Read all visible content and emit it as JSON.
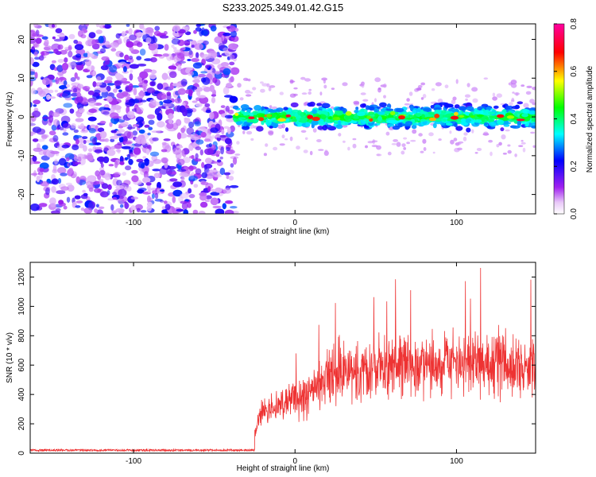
{
  "title": "S233.2025.349.01.42.G15",
  "chart_data": [
    {
      "type": "heatmap",
      "name": "spectrogram",
      "xlabel": "Height of straight line (km)",
      "ylabel": "Frequency (Hz)",
      "xlim": [
        -164,
        149
      ],
      "ylim": [
        -25,
        24
      ],
      "xticks": [
        -100,
        0,
        100
      ],
      "yticks": [
        -20,
        -10,
        0,
        10,
        20
      ],
      "noise_region_x": [
        -164,
        -37
      ],
      "signal_region_x": [
        -37,
        149
      ],
      "signal_center_hz": 0,
      "signal_halfwidth_hz": 3,
      "colorbar": {
        "label": "Normalized spectral amplitude",
        "range": [
          0.0,
          0.8
        ],
        "ticks": [
          "0.0",
          "0.2",
          "0.4",
          "0.6",
          "0.8"
        ],
        "colors": [
          "#ffffff",
          "#a020f0",
          "#0000ff",
          "#00ffff",
          "#00ff00",
          "#ffff00",
          "#ff0000",
          "#ff00a0"
        ]
      }
    },
    {
      "type": "line",
      "name": "snr",
      "xlabel": "Height of straight line (km)",
      "ylabel": "SNR (10 * v/v)",
      "xlim": [
        -164,
        149
      ],
      "ylim": [
        0,
        1300
      ],
      "xticks": [
        -100,
        0,
        100
      ],
      "yticks": [
        0,
        200,
        400,
        600,
        800,
        1000,
        1200
      ],
      "color": "#ee3333",
      "noise_floor_value": 20,
      "signal_onset_x": -25,
      "series_envelope": {
        "x": [
          -164,
          -28,
          -25,
          -20,
          -10,
          0,
          10,
          20,
          30,
          50,
          70,
          90,
          110,
          130,
          149
        ],
        "y": [
          20,
          20,
          150,
          280,
          340,
          380,
          420,
          500,
          560,
          580,
          600,
          620,
          620,
          600,
          580
        ]
      }
    }
  ]
}
